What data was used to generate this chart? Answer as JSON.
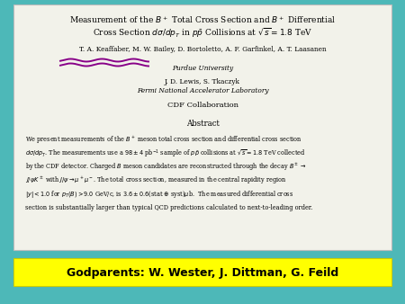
{
  "bg_color": "#4db8b8",
  "paper_color": "#f2f2ea",
  "yellow_bar_color": "#ffff00",
  "yellow_bar_border": "#cccc00",
  "godparents_text": "Godparents: W. Wester, J. Dittman, G. Feild",
  "title_line1": "Measurement of the $B^+$ Total Cross Section and $B^+$ Differential",
  "title_line2": "Cross Section $d\\sigma/dp_T$ in $p\\bar{p}$ Collisions at $\\sqrt{s}=1.8$ TeV",
  "authors_line1": "T. A. Keaffaber, M. W. Bailey, D. Bortoletto, A. F. Garfinkel, A. T. Laasanen",
  "authors_line2": "Purdue University",
  "authors_line3": "J. D. Lewis, S. Tkaczyk",
  "authors_line4": "Fermi National Accelerator Laboratory",
  "authors_line5": "CDF Collaboration",
  "abstract_title": "Abstract",
  "wave_color": "#880088",
  "abstract_lines": [
    "We present measurements of the $B^+$ meson total cross section and differential cross section",
    "$d\\sigma/dp_T$. The measurements use a $98 \\pm 4$ pb$^{-1}$ sample of $p\\bar{p}$ collisions at $\\sqrt{s}=1.8$ TeV collected",
    "by the CDF detector. Charged $B$ meson candidates are reconstructed through the decay $B^\\pm \\to$",
    "$J/\\psi K^\\pm$ with $J/\\psi \\to \\mu^+\\mu^-$. The total cross section, measured in the central rapidity region",
    "$|y| < 1.0$ for $p_T(B) > 9.0$ GeV/c, is $3.6 \\pm 0.6$(stat $\\oplus$ syst)$\\mu$b.  The measured differential cross",
    "section is substantially larger than typical QCD predictions calculated to next-to-leading order."
  ]
}
